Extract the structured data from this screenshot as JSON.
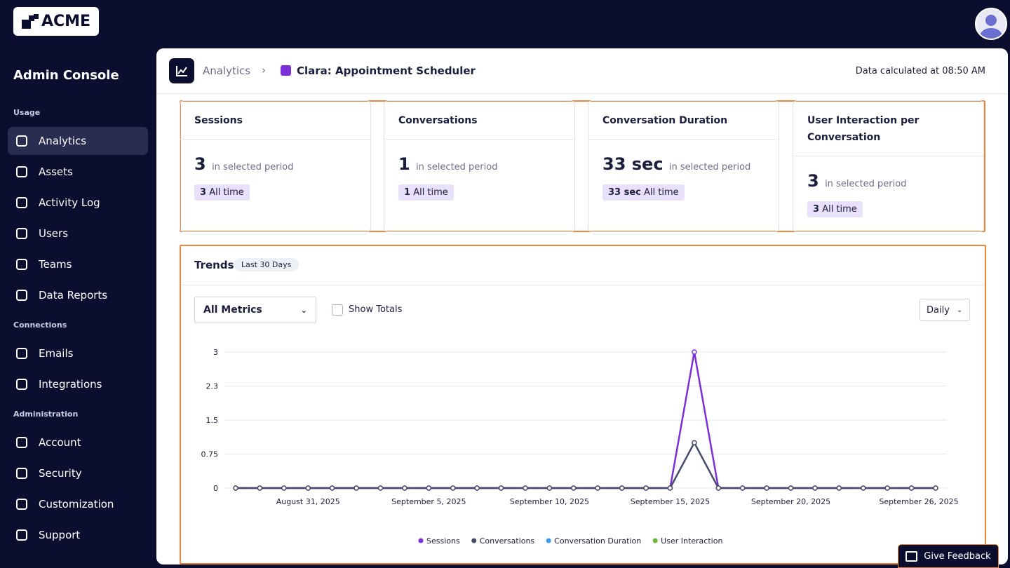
{
  "logo": "ACME",
  "sidebar": {
    "title": "Admin Console",
    "sections": [
      {
        "heading": "Usage",
        "items": [
          "Analytics",
          "Assets",
          "Activity Log",
          "Users",
          "Teams",
          "Data Reports"
        ]
      },
      {
        "heading": "Connections",
        "items": [
          "Emails",
          "Integrations"
        ]
      },
      {
        "heading": "Administration",
        "items": [
          "Account",
          "Security",
          "Customization",
          "Support"
        ]
      }
    ]
  },
  "header": {
    "breadcrumb": [
      "Analytics",
      "Clara: Appointment Scheduler"
    ],
    "status": "Data calculated at 08:50 AM"
  },
  "cards": [
    {
      "title": "Sessions",
      "value": "3",
      "period": "in selected period",
      "all_time_value": "3",
      "all_time_label": "All time"
    },
    {
      "title": "Conversations",
      "value": "1",
      "period": "in selected period",
      "all_time_value": "1",
      "all_time_label": "All time"
    },
    {
      "title": "Conversation Duration",
      "value": "33 sec",
      "period": "in selected period",
      "all_time_value": "33 sec",
      "all_time_label": "All time"
    },
    {
      "title": "User Interaction per Conversation",
      "value": "3",
      "period": "in selected period",
      "all_time_value": "3",
      "all_time_label": "All time"
    }
  ],
  "trends": {
    "title": "Trends",
    "range": "Last 30 Days",
    "metric_select": "All Metrics",
    "toggle": "Show Totals",
    "granularity": "Daily"
  },
  "chart_data": {
    "type": "line",
    "categories": [
      null,
      null,
      null,
      "August 31, 2025",
      null,
      null,
      null,
      null,
      "September 5, 2025",
      null,
      null,
      null,
      null,
      "September 10, 2025",
      null,
      null,
      null,
      null,
      "September 15, 2025",
      null,
      null,
      null,
      null,
      "September 20, 2025",
      null,
      null,
      null,
      null,
      null,
      "September 26, 2025"
    ],
    "series": [
      {
        "name": "Sessions",
        "color": "#7b2fd6",
        "values": [
          0,
          0,
          0,
          0,
          0,
          0,
          0,
          0,
          0,
          0,
          0,
          0,
          0,
          0,
          0,
          0,
          0,
          0,
          0,
          3,
          0,
          0,
          0,
          0,
          0,
          0,
          0,
          0,
          0,
          0
        ]
      },
      {
        "name": "Conversations",
        "color": "#454a6b",
        "values": [
          0,
          0,
          0,
          0,
          0,
          0,
          0,
          0,
          0,
          0,
          0,
          0,
          0,
          0,
          0,
          0,
          0,
          0,
          0,
          1,
          0,
          0,
          0,
          0,
          0,
          0,
          0,
          0,
          0,
          0
        ]
      },
      {
        "name": "Conversation Duration",
        "color": "#3b9cf0"
      },
      {
        "name": "User Interaction",
        "color": "#6ab43a"
      }
    ],
    "ylim": [
      0,
      3
    ],
    "yticks": [
      0,
      0.75,
      1.5,
      {
        "value": 2.25,
        "label": "2.3"
      },
      3
    ],
    "grid": true
  },
  "feedback": "Give Feedback"
}
